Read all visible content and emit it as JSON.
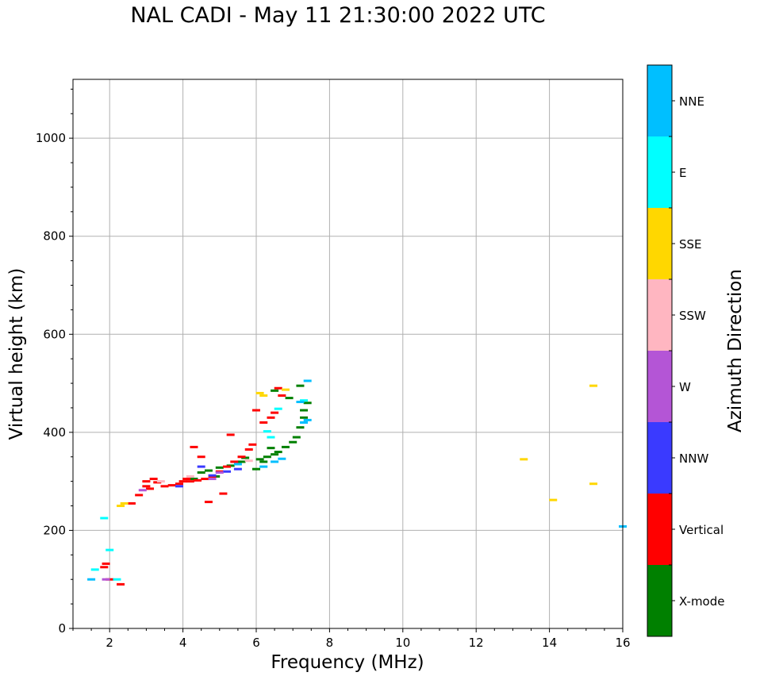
{
  "chart_data": {
    "type": "scatter",
    "title": "NAL CADI - May 11 21:30:00 2022 UTC",
    "xlabel": "Frequency (MHz)",
    "ylabel": "Virtual height (km)",
    "xlim": [
      1,
      16
    ],
    "ylim": [
      0,
      1120
    ],
    "x_ticks": [
      2,
      4,
      6,
      8,
      10,
      12,
      14,
      16
    ],
    "y_ticks": [
      0,
      200,
      400,
      600,
      800,
      1000
    ],
    "grid": true,
    "colorbar": {
      "label": "Azimuth Direction",
      "categories": [
        "X-mode",
        "Vertical",
        "NNW",
        "W",
        "SSW",
        "SSE",
        "E",
        "NNE"
      ],
      "colors": [
        "#008000",
        "#ff0000",
        "#3a3aff",
        "#b455d6",
        "#ffb6c1",
        "#ffd700",
        "#00ffff",
        "#00bfff"
      ]
    },
    "series": [
      {
        "name": "X-mode",
        "points": [
          [
            4.3,
            305
          ],
          [
            4.5,
            318
          ],
          [
            4.7,
            322
          ],
          [
            5.0,
            328
          ],
          [
            5.3,
            332
          ],
          [
            5.6,
            340
          ],
          [
            6.0,
            325
          ],
          [
            6.1,
            345
          ],
          [
            6.3,
            350
          ],
          [
            6.5,
            355
          ],
          [
            6.6,
            360
          ],
          [
            6.8,
            370
          ],
          [
            7.0,
            380
          ],
          [
            7.1,
            390
          ],
          [
            7.2,
            410
          ],
          [
            7.3,
            430
          ],
          [
            7.4,
            460
          ],
          [
            7.2,
            495
          ],
          [
            6.9,
            470
          ],
          [
            6.5,
            485
          ],
          [
            6.2,
            340
          ],
          [
            4.9,
            310
          ],
          [
            5.7,
            348
          ],
          [
            6.4,
            368
          ],
          [
            7.3,
            445
          ]
        ]
      },
      {
        "name": "Vertical",
        "points": [
          [
            1.85,
            125
          ],
          [
            1.9,
            132
          ],
          [
            2.0,
            100
          ],
          [
            2.3,
            90
          ],
          [
            2.6,
            255
          ],
          [
            2.8,
            272
          ],
          [
            3.0,
            290
          ],
          [
            3.0,
            300
          ],
          [
            3.1,
            285
          ],
          [
            3.2,
            305
          ],
          [
            3.3,
            298
          ],
          [
            3.5,
            290
          ],
          [
            3.7,
            292
          ],
          [
            3.9,
            295
          ],
          [
            4.0,
            300
          ],
          [
            4.1,
            305
          ],
          [
            4.2,
            300
          ],
          [
            4.4,
            302
          ],
          [
            4.6,
            305
          ],
          [
            4.8,
            310
          ],
          [
            5.0,
            320
          ],
          [
            5.2,
            330
          ],
          [
            5.4,
            340
          ],
          [
            5.6,
            350
          ],
          [
            5.8,
            365
          ],
          [
            6.0,
            445
          ],
          [
            5.9,
            375
          ],
          [
            6.2,
            420
          ],
          [
            6.4,
            430
          ],
          [
            6.6,
            490
          ],
          [
            6.5,
            440
          ],
          [
            4.7,
            258
          ],
          [
            5.1,
            275
          ],
          [
            4.3,
            370
          ],
          [
            4.5,
            350
          ],
          [
            5.3,
            395
          ],
          [
            6.7,
            475
          ]
        ]
      },
      {
        "name": "NNW",
        "points": [
          [
            4.5,
            330
          ],
          [
            4.8,
            312
          ],
          [
            5.2,
            320
          ],
          [
            5.5,
            325
          ],
          [
            3.9,
            290
          ]
        ]
      },
      {
        "name": "W",
        "points": [
          [
            1.9,
            100
          ],
          [
            4.8,
            305
          ],
          [
            5.0,
            318
          ],
          [
            2.9,
            282
          ]
        ]
      },
      {
        "name": "SSW",
        "points": [
          [
            4.2,
            310
          ],
          [
            3.4,
            300
          ],
          [
            5.8,
            342
          ]
        ]
      },
      {
        "name": "SSE",
        "points": [
          [
            2.3,
            250
          ],
          [
            2.4,
            255
          ],
          [
            6.1,
            480
          ],
          [
            6.2,
            475
          ],
          [
            6.8,
            487
          ],
          [
            13.3,
            345
          ],
          [
            14.1,
            262
          ],
          [
            15.2,
            295
          ],
          [
            15.2,
            495
          ]
        ]
      },
      {
        "name": "E",
        "points": [
          [
            1.6,
            120
          ],
          [
            2.2,
            100
          ],
          [
            6.4,
            390
          ],
          [
            6.3,
            402
          ],
          [
            6.6,
            448
          ],
          [
            7.3,
            465
          ],
          [
            2.0,
            160
          ],
          [
            1.85,
            225
          ]
        ]
      },
      {
        "name": "NNE",
        "points": [
          [
            6.2,
            330
          ],
          [
            6.5,
            340
          ],
          [
            6.7,
            346
          ],
          [
            7.3,
            420
          ],
          [
            7.4,
            425
          ],
          [
            7.2,
            462
          ],
          [
            7.4,
            505
          ],
          [
            1.5,
            100
          ],
          [
            16.0,
            208
          ],
          [
            5.5,
            335
          ]
        ]
      }
    ]
  }
}
